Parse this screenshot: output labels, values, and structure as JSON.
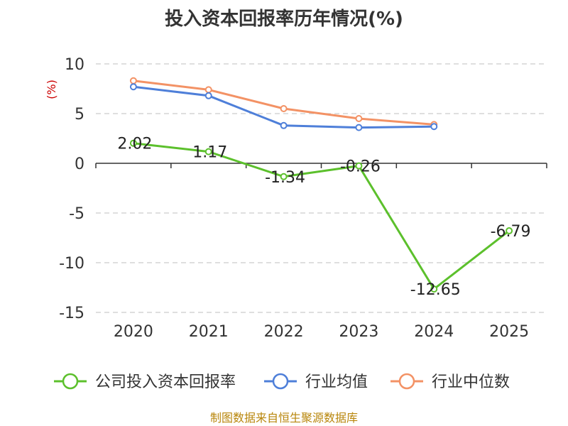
{
  "chart_data": {
    "type": "line",
    "title": "投入资本回报率历年情况(%)",
    "ylabel": "(%)",
    "xlabel": "",
    "ylim": [
      -15,
      10
    ],
    "yticks": [
      10,
      5,
      0,
      -5,
      -10,
      -15
    ],
    "categories": [
      "2020",
      "2021",
      "2022",
      "2023",
      "2024",
      "2025"
    ],
    "grid": true,
    "legend_position": "bottom",
    "series": [
      {
        "name": "公司投入资本回报率",
        "color": "#5cc02c",
        "values": [
          2.02,
          1.17,
          -1.34,
          -0.26,
          -12.65,
          -6.79
        ],
        "labels": [
          "2.02",
          "1.17",
          "-1.34",
          "-0.26",
          "-12.65",
          "-6.79"
        ]
      },
      {
        "name": "行业均值",
        "color": "#4e7fd9",
        "values": [
          7.7,
          6.8,
          3.8,
          3.6,
          3.7,
          null
        ]
      },
      {
        "name": "行业中位数",
        "color": "#f39265",
        "values": [
          8.3,
          7.4,
          5.5,
          4.5,
          3.9,
          null
        ]
      }
    ],
    "source": "制图数据来自恒生聚源数据库"
  }
}
